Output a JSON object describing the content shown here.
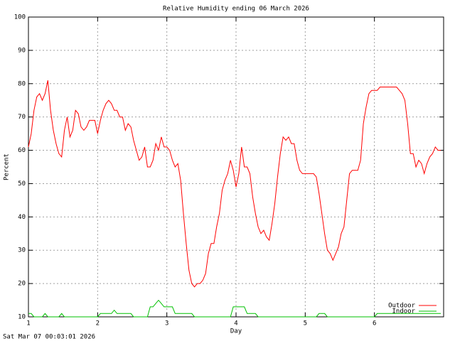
{
  "chart_data": {
    "type": "line",
    "title": "Relative Humidity ending 06 March 2026",
    "x_label": "Day",
    "y_label": "Percent",
    "footer": "Sat Mar 07 00:03:01 2026",
    "xlim": [
      1,
      7
    ],
    "xticks": [
      1,
      2,
      3,
      4,
      5,
      6
    ],
    "ylim": [
      10,
      100
    ],
    "yticks": [
      10,
      20,
      30,
      40,
      50,
      60,
      70,
      80,
      90,
      100
    ],
    "grid": true,
    "legend": "bottom-right",
    "x": [
      1,
      1.04,
      1.08,
      1.12,
      1.16,
      1.2,
      1.24,
      1.28,
      1.32,
      1.36,
      1.4,
      1.44,
      1.48,
      1.52,
      1.56,
      1.6,
      1.64,
      1.68,
      1.72,
      1.76,
      1.8,
      1.84,
      1.88,
      1.92,
      1.96,
      2,
      2.04,
      2.08,
      2.12,
      2.16,
      2.2,
      2.24,
      2.28,
      2.32,
      2.36,
      2.4,
      2.44,
      2.48,
      2.52,
      2.56,
      2.6,
      2.64,
      2.68,
      2.72,
      2.76,
      2.8,
      2.84,
      2.88,
      2.92,
      2.96,
      3,
      3.04,
      3.08,
      3.12,
      3.16,
      3.2,
      3.24,
      3.28,
      3.32,
      3.36,
      3.4,
      3.44,
      3.48,
      3.52,
      3.56,
      3.6,
      3.64,
      3.68,
      3.72,
      3.76,
      3.8,
      3.84,
      3.88,
      3.92,
      3.96,
      4,
      4.04,
      4.08,
      4.12,
      4.16,
      4.2,
      4.24,
      4.28,
      4.32,
      4.36,
      4.4,
      4.44,
      4.48,
      4.52,
      4.56,
      4.6,
      4.64,
      4.68,
      4.72,
      4.76,
      4.8,
      4.84,
      4.88,
      4.92,
      4.96,
      5,
      5.04,
      5.08,
      5.12,
      5.16,
      5.2,
      5.24,
      5.28,
      5.32,
      5.36,
      5.4,
      5.44,
      5.48,
      5.52,
      5.56,
      5.6,
      5.64,
      5.68,
      5.72,
      5.76,
      5.8,
      5.84,
      5.88,
      5.92,
      5.96,
      6,
      6.04,
      6.08,
      6.12,
      6.16,
      6.2,
      6.24,
      6.28,
      6.32,
      6.36,
      6.4,
      6.44,
      6.48,
      6.52,
      6.56,
      6.6,
      6.64,
      6.68,
      6.72,
      6.76,
      6.8,
      6.84,
      6.88,
      6.92,
      6.96
    ],
    "series": [
      {
        "name": "Outdoor",
        "color": "#ff0000",
        "values": [
          61,
          65,
          72,
          76,
          77,
          75,
          77,
          81,
          72,
          66,
          62,
          59,
          58,
          66,
          70,
          64,
          66,
          72,
          71,
          67,
          66,
          67,
          69,
          69,
          69,
          65,
          69,
          72,
          74,
          75,
          74,
          72,
          72,
          70,
          70,
          66,
          68,
          67,
          63,
          60,
          57,
          58,
          61,
          55,
          55,
          57,
          62,
          60,
          64,
          61,
          61,
          60,
          57,
          55,
          56,
          51,
          41,
          32,
          24,
          20,
          19,
          20,
          20,
          21,
          23,
          29,
          32,
          32,
          37,
          41,
          48,
          51,
          53,
          57,
          54,
          49,
          53,
          61,
          55,
          55,
          53,
          46,
          41,
          37,
          35,
          36,
          34,
          33,
          38,
          44,
          52,
          59,
          64,
          63,
          64,
          62,
          62,
          57,
          54,
          53,
          53,
          53,
          53,
          53,
          52,
          47,
          41,
          35,
          30,
          29,
          27,
          29,
          31,
          35,
          37,
          45,
          53,
          54,
          54,
          54,
          57,
          68,
          73,
          77,
          78,
          78,
          78,
          79,
          79,
          79,
          79,
          79,
          79,
          79,
          78,
          77,
          75,
          68,
          59,
          59,
          55,
          57,
          56,
          53,
          56,
          58,
          59,
          61,
          60,
          60
        ]
      },
      {
        "name": "Indoor",
        "color": "#00c000",
        "values": [
          11,
          11,
          10,
          10,
          10,
          10,
          11,
          10,
          10,
          10,
          10,
          10,
          11,
          10,
          10,
          10,
          10,
          10,
          10,
          10,
          10,
          10,
          10,
          10,
          10,
          10,
          11,
          11,
          11,
          11,
          11,
          12,
          11,
          11,
          11,
          11,
          11,
          11,
          10,
          10,
          10,
          10,
          10,
          10,
          13,
          13,
          14,
          15,
          14,
          13,
          13,
          13,
          13,
          11,
          11,
          11,
          11,
          11,
          11,
          11,
          10,
          10,
          10,
          10,
          10,
          10,
          10,
          10,
          10,
          10,
          10,
          10,
          10,
          10,
          13,
          13,
          13,
          13,
          13,
          11,
          11,
          11,
          11,
          10,
          10,
          10,
          10,
          10,
          10,
          10,
          10,
          10,
          10,
          10,
          10,
          10,
          10,
          10,
          10,
          10,
          10,
          10,
          10,
          10,
          10,
          11,
          11,
          11,
          10,
          10,
          10,
          10,
          10,
          10,
          10,
          10,
          10,
          10,
          10,
          10,
          10,
          10,
          10,
          10,
          10,
          10,
          11,
          11,
          11,
          11,
          11,
          11,
          11,
          11,
          11,
          11,
          11,
          11,
          11,
          11,
          11,
          11,
          11,
          11,
          11,
          11,
          11,
          11,
          11,
          11
        ]
      }
    ]
  }
}
